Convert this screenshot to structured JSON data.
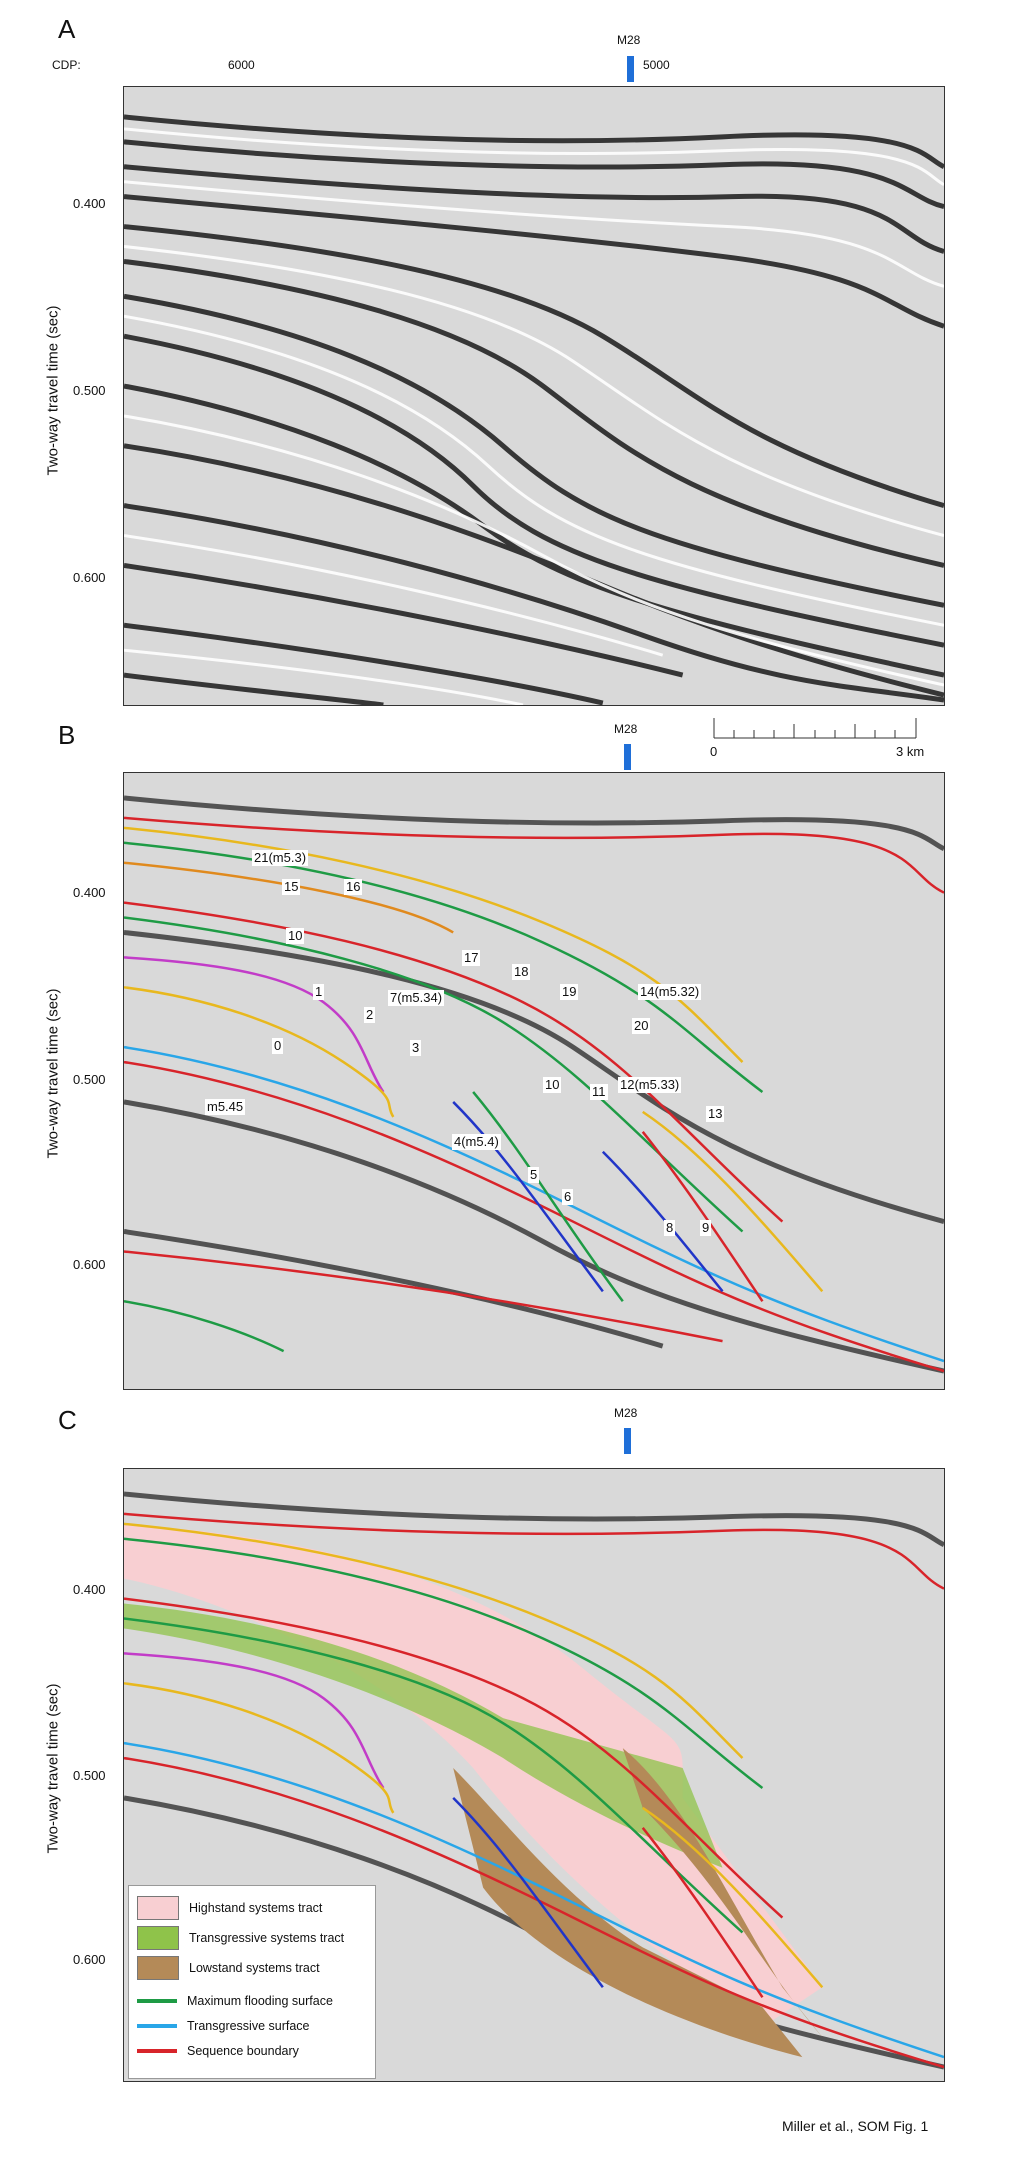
{
  "panels": [
    {
      "letter": "A",
      "ylabel": "Two-way travel time (sec)",
      "ticks": [
        "0.400",
        "0.500",
        "0.600"
      ]
    },
    {
      "letter": "B",
      "ylabel": "Two-way travel time (sec)",
      "ticks": [
        "0.400",
        "0.500",
        "0.600"
      ]
    },
    {
      "letter": "C",
      "ylabel": "Two-way travel time (sec)",
      "ticks": [
        "0.400",
        "0.500",
        "0.600"
      ]
    }
  ],
  "cdp": {
    "label": "CDP:",
    "values": [
      "6000",
      "5000"
    ]
  },
  "well": "M28",
  "scale": {
    "start": "0",
    "end": "3 km"
  },
  "horizon_labels": [
    "21(m5.3)",
    "15",
    "16",
    "10",
    "17",
    "18",
    "19",
    "14(m5.32)",
    "1",
    "2",
    "7(m5.34)",
    "20",
    "0",
    "3",
    "10",
    "11",
    "12(m5.33)",
    "m5.45",
    "13",
    "4(m5.4)",
    "5",
    "6",
    "8",
    "9"
  ],
  "legend": {
    "items": [
      {
        "label": "Highstand systems tract",
        "color": "#f8cfd2"
      },
      {
        "label": "Transgressive systems tract",
        "color": "#8fc34a"
      },
      {
        "label": "Lowstand systems tract",
        "color": "#b48a58"
      },
      {
        "label": "Maximum flooding surface",
        "color": "#1e9b45"
      },
      {
        "label": "Transgressive surface",
        "color": "#29a6e8"
      },
      {
        "label": "Sequence boundary",
        "color": "#d8242a"
      }
    ]
  },
  "credit": "Miller et al., SOM Fig. 1"
}
